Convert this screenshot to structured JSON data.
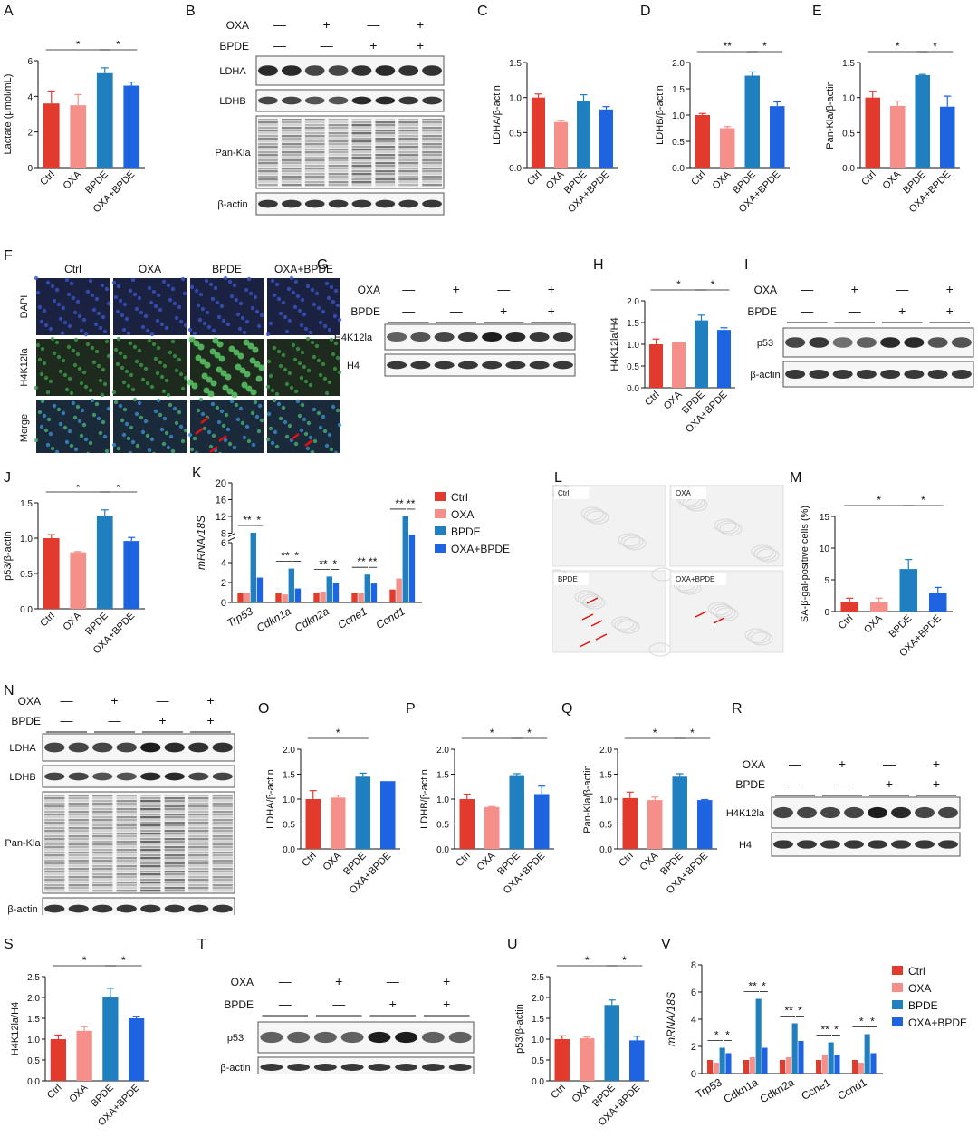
{
  "colors": {
    "ctrl": "#e23b2e",
    "oxa": "#f49089",
    "bpde": "#1f7fbf",
    "combo": "#1e63e0"
  },
  "groups": [
    "Ctrl",
    "OXA",
    "BPDE",
    "OXA+BPDE"
  ],
  "plus": "+",
  "minus": "—",
  "labels": {
    "oxa": "OXA",
    "bpde": "BPDE",
    "ldha": "LDHA",
    "ldhb": "LDHB",
    "pankla": "Pan-Kla",
    "bactin": "β-actin",
    "h4k12la": "H4K12la",
    "h4": "H4",
    "p53": "p53",
    "dapi": "DAPI",
    "merge": "Merge"
  },
  "panel_letters": [
    "A",
    "B",
    "C",
    "D",
    "E",
    "F",
    "G",
    "H",
    "I",
    "J",
    "K",
    "L",
    "M",
    "N",
    "O",
    "P",
    "Q",
    "R",
    "S",
    "T",
    "U",
    "V"
  ],
  "chart_data": [
    {
      "panel": "A",
      "type": "bar",
      "categories": [
        "Ctrl",
        "OXA",
        "BPDE",
        "OXA+BPDE"
      ],
      "values": [
        3.6,
        3.5,
        5.3,
        4.6
      ],
      "errors": [
        0.7,
        0.6,
        0.3,
        0.2
      ],
      "ylabel": "Lactate (μmol/mL)",
      "ylim": [
        0,
        6
      ],
      "yticks": [
        0,
        2,
        4,
        6
      ],
      "sig": [
        {
          "from": 0,
          "to": 2,
          "text": "*"
        },
        {
          "from": 2,
          "to": 3,
          "text": "*"
        }
      ]
    },
    {
      "panel": "C",
      "type": "bar",
      "categories": [
        "Ctrl",
        "OXA",
        "BPDE",
        "OXA+BPDE"
      ],
      "values": [
        1.0,
        0.65,
        0.95,
        0.83
      ],
      "errors": [
        0.05,
        0.02,
        0.09,
        0.04
      ],
      "ylabel": "LDHA/β-actin",
      "ylim": [
        0,
        1.5
      ],
      "yticks": [
        "0.0",
        "0.5",
        "1.0",
        "1.5"
      ],
      "sig": []
    },
    {
      "panel": "D",
      "type": "bar",
      "categories": [
        "Ctrl",
        "OXA",
        "BPDE",
        "OXA+BPDE"
      ],
      "values": [
        1.0,
        0.75,
        1.75,
        1.17
      ],
      "errors": [
        0.03,
        0.03,
        0.07,
        0.08
      ],
      "ylabel": "LDHB/β-actin",
      "ylim": [
        0,
        2.0
      ],
      "yticks": [
        "0.0",
        "0.5",
        "1.0",
        "1.5",
        "2.0"
      ],
      "sig": [
        {
          "from": 0,
          "to": 2,
          "text": "**"
        },
        {
          "from": 2,
          "to": 3,
          "text": "*"
        }
      ]
    },
    {
      "panel": "E",
      "type": "bar",
      "categories": [
        "Ctrl",
        "OXA",
        "BPDE",
        "OXA+BPDE"
      ],
      "values": [
        1.0,
        0.88,
        1.32,
        0.87
      ],
      "errors": [
        0.09,
        0.07,
        0.01,
        0.15
      ],
      "ylabel": "Pan-Kla/β-actin",
      "ylim": [
        0,
        1.5
      ],
      "yticks": [
        "0.0",
        "0.5",
        "1.0",
        "1.5"
      ],
      "sig": [
        {
          "from": 0,
          "to": 2,
          "text": "*"
        },
        {
          "from": 2,
          "to": 3,
          "text": "*"
        }
      ]
    },
    {
      "panel": "H",
      "type": "bar",
      "categories": [
        "Ctrl",
        "OXA",
        "BPDE",
        "OXA+BPDE"
      ],
      "values": [
        1.0,
        1.05,
        1.55,
        1.33
      ],
      "errors": [
        0.12,
        0.0,
        0.12,
        0.05
      ],
      "ylabel": "H4K12la/H4",
      "ylim": [
        0,
        2.0
      ],
      "yticks": [
        "0.0",
        "0.5",
        "1.0",
        "1.5",
        "2.0"
      ],
      "sig": [
        {
          "from": 0,
          "to": 2,
          "text": "*"
        },
        {
          "from": 2,
          "to": 3,
          "text": "*"
        }
      ]
    },
    {
      "panel": "J",
      "type": "bar",
      "categories": [
        "Ctrl",
        "OXA",
        "BPDE",
        "OXA+BPDE"
      ],
      "values": [
        1.0,
        0.8,
        1.32,
        0.96
      ],
      "errors": [
        0.05,
        0.01,
        0.08,
        0.05
      ],
      "ylabel": "p53/β-actin",
      "ylim": [
        0,
        1.5
      ],
      "yticks": [
        "0.0",
        "0.5",
        "1.0",
        "1.5"
      ],
      "sig": [
        {
          "from": 0,
          "to": 2,
          "text": "*"
        },
        {
          "from": 2,
          "to": 3,
          "text": "*"
        }
      ]
    },
    {
      "panel": "K",
      "type": "bar",
      "ylabel": "mRNA/18S",
      "categories": [
        "Trp53",
        "Cdkn1a",
        "Cdkn2a",
        "Ccne1",
        "Ccnd1"
      ],
      "series": [
        {
          "name": "Ctrl",
          "values": [
            1.0,
            1.0,
            1.0,
            1.0,
            1.3
          ]
        },
        {
          "name": "OXA",
          "values": [
            1.0,
            0.8,
            1.1,
            1.0,
            2.4
          ]
        },
        {
          "name": "BPDE",
          "values": [
            7.0,
            3.4,
            2.6,
            2.8,
            12.0
          ]
        },
        {
          "name": "OXA+BPDE",
          "values": [
            2.5,
            1.4,
            2.0,
            1.9,
            6.8
          ]
        }
      ],
      "yticks_lower": [
        0,
        2,
        4,
        6
      ],
      "yticks_upper": [
        8,
        12,
        16,
        20
      ],
      "sig": [
        [
          "**",
          "*"
        ],
        [
          "**",
          "*"
        ],
        [
          "**",
          "*"
        ],
        [
          "**",
          "**"
        ],
        [
          "**",
          "**"
        ]
      ]
    },
    {
      "panel": "M",
      "type": "bar",
      "categories": [
        "Ctrl",
        "OXA",
        "BPDE",
        "OXA+BPDE"
      ],
      "values": [
        1.5,
        1.5,
        6.7,
        3.0
      ],
      "errors": [
        0.6,
        0.6,
        1.5,
        0.8
      ],
      "ylabel": "SA-β-gal-positive cells (%)",
      "ylim": [
        0,
        15
      ],
      "yticks": [
        0,
        5,
        10,
        15
      ],
      "sig": [
        {
          "from": 0,
          "to": 2,
          "text": "*"
        },
        {
          "from": 2,
          "to": 3,
          "text": "*"
        }
      ]
    },
    {
      "panel": "O",
      "type": "bar",
      "categories": [
        "Ctrl",
        "OXA",
        "BPDE",
        "OXA+BPDE"
      ],
      "values": [
        1.0,
        1.03,
        1.45,
        1.36
      ],
      "errors": [
        0.17,
        0.05,
        0.07,
        0.0
      ],
      "ylabel": "LDHA/β-actin",
      "ylim": [
        0,
        2.0
      ],
      "yticks": [
        "0.0",
        "0.5",
        "1.0",
        "1.5",
        "2.0"
      ],
      "sig": [
        {
          "from": 0,
          "to": 2,
          "text": "*"
        }
      ]
    },
    {
      "panel": "P",
      "type": "bar",
      "categories": [
        "Ctrl",
        "OXA",
        "BPDE",
        "OXA+BPDE"
      ],
      "values": [
        1.0,
        0.84,
        1.48,
        1.1
      ],
      "errors": [
        0.1,
        0.01,
        0.03,
        0.16
      ],
      "ylabel": "LDHB/β-actin",
      "ylim": [
        0,
        2.0
      ],
      "yticks": [
        "0.0",
        "0.5",
        "1.0",
        "1.5",
        "2.0"
      ],
      "sig": [
        {
          "from": 0,
          "to": 2,
          "text": "*"
        },
        {
          "from": 2,
          "to": 3,
          "text": "*"
        }
      ]
    },
    {
      "panel": "Q",
      "type": "bar",
      "categories": [
        "Ctrl",
        "OXA",
        "BPDE",
        "OXA+BPDE"
      ],
      "values": [
        1.02,
        0.98,
        1.45,
        0.98
      ],
      "errors": [
        0.12,
        0.06,
        0.06,
        0.01
      ],
      "ylabel": "Pan-Kla/β-actin",
      "ylim": [
        0,
        2.0
      ],
      "yticks": [
        "0.0",
        "0.5",
        "1.0",
        "1.5",
        "2.0"
      ],
      "sig": [
        {
          "from": 0,
          "to": 2,
          "text": "*"
        },
        {
          "from": 2,
          "to": 3,
          "text": "*"
        }
      ]
    },
    {
      "panel": "S",
      "type": "bar",
      "categories": [
        "Ctrl",
        "OXA",
        "BPDE",
        "OXA+BPDE"
      ],
      "values": [
        1.0,
        1.2,
        2.0,
        1.5
      ],
      "errors": [
        0.1,
        0.1,
        0.22,
        0.05
      ],
      "ylabel": "H4K12la/H4",
      "ylim": [
        0,
        2.5
      ],
      "yticks": [
        "0.0",
        "0.5",
        "1.0",
        "1.5",
        "2.0",
        "2.5"
      ],
      "sig": [
        {
          "from": 0,
          "to": 2,
          "text": "*"
        },
        {
          "from": 2,
          "to": 3,
          "text": "*"
        }
      ]
    },
    {
      "panel": "U",
      "type": "bar",
      "categories": [
        "Ctrl",
        "OXA",
        "BPDE",
        "OXA+BPDE"
      ],
      "values": [
        1.0,
        1.02,
        1.82,
        0.97
      ],
      "errors": [
        0.08,
        0.03,
        0.12,
        0.1
      ],
      "ylabel": "p53/β-actin",
      "ylim": [
        0,
        2.5
      ],
      "yticks": [
        "0.0",
        "0.5",
        "1.0",
        "1.5",
        "2.0",
        "2.5"
      ],
      "sig": [
        {
          "from": 0,
          "to": 2,
          "text": "*"
        },
        {
          "from": 2,
          "to": 3,
          "text": "*"
        }
      ]
    },
    {
      "panel": "V",
      "type": "bar",
      "ylabel": "mRNA/18S",
      "categories": [
        "Trp53",
        "Cdkn1a",
        "Cdkn2a",
        "Ccne1",
        "Ccnd1"
      ],
      "series": [
        {
          "name": "Ctrl",
          "values": [
            1.0,
            1.0,
            1.0,
            1.0,
            1.0
          ]
        },
        {
          "name": "OXA",
          "values": [
            0.8,
            1.2,
            1.2,
            1.4,
            0.8
          ]
        },
        {
          "name": "BPDE",
          "values": [
            1.9,
            5.5,
            3.7,
            2.3,
            2.9
          ]
        },
        {
          "name": "OXA+BPDE",
          "values": [
            1.5,
            1.9,
            2.4,
            1.4,
            1.5
          ]
        }
      ],
      "ylim": [
        0,
        8
      ],
      "yticks": [
        0,
        2,
        4,
        6,
        8
      ],
      "sig": [
        [
          "*",
          "*"
        ],
        [
          "**",
          "*"
        ],
        [
          "**",
          "*"
        ],
        [
          "**",
          "*"
        ],
        [
          "*",
          "*"
        ]
      ]
    }
  ]
}
